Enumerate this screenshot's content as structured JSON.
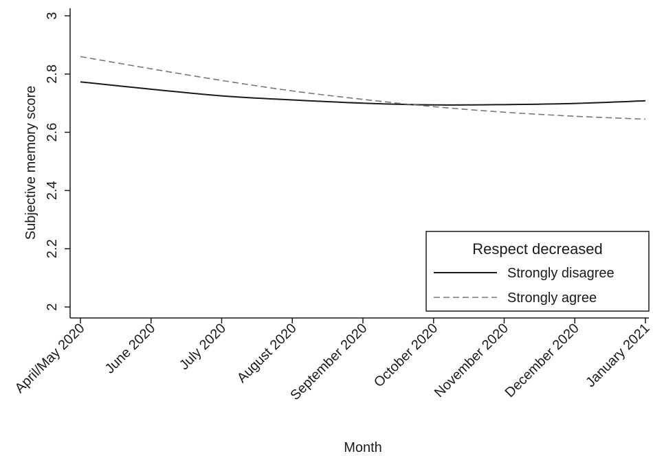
{
  "chart_data": {
    "type": "line",
    "xlabel": "Month",
    "ylabel": "Subjective memory score",
    "ylim": [
      2,
      3
    ],
    "yticks": [
      2,
      2.2,
      2.4,
      2.6,
      2.8,
      3
    ],
    "categories": [
      "April/May 2020",
      "June 2020",
      "July 2020",
      "August 2020",
      "September 2020",
      "October 2020",
      "November 2020",
      "December 2020",
      "January 2021"
    ],
    "legend": {
      "title": "Respect decreased",
      "position": "bottom-right"
    },
    "series": [
      {
        "name": "Strongly disagree",
        "style": "solid",
        "color": "#1a1a1a",
        "values": [
          2.773,
          2.748,
          2.725,
          2.711,
          2.7,
          2.694,
          2.695,
          2.699,
          2.708
        ]
      },
      {
        "name": "Strongly agree",
        "style": "dashed",
        "color": "#777777",
        "values": [
          2.86,
          2.818,
          2.778,
          2.742,
          2.713,
          2.688,
          2.669,
          2.655,
          2.645
        ]
      }
    ],
    "grid": false
  }
}
